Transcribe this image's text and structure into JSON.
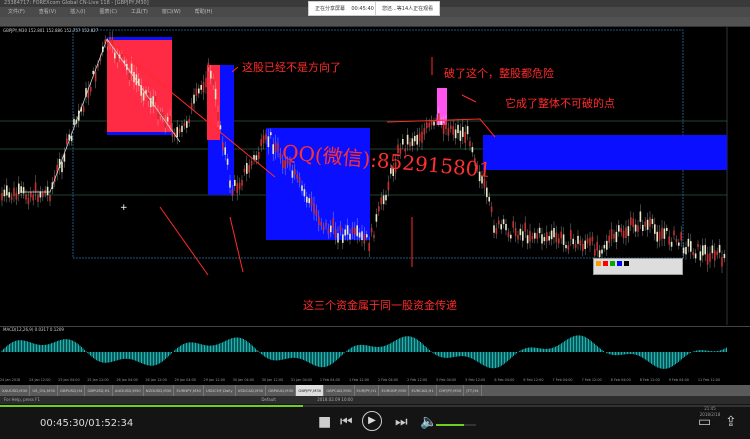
{
  "window": {
    "title": "23384717: FOREXcom Global CN-Live 118 - [GBPJPY,M30]"
  },
  "menu": [
    "文件(F)",
    "查看(V)",
    "插入(I)",
    "图表(C)",
    "工具(T)",
    "窗口(W)",
    "帮助(H)"
  ],
  "chart": {
    "symbol_info": "GBPJPY,M30 152.801 152.886 152.757 152.827",
    "indicator_info": "MACD(12,26,9) 0.0317 0.1209",
    "annotations": {
      "a1": "这股已经不是方向了",
      "a2": "破了这个，整股都危险",
      "a3": "它成了整体不可破的点",
      "a4": "这三个资金属于同一股资金传递",
      "watermark": "QQ(微信):852915801"
    },
    "time_axis": [
      "24 Jan 2018",
      "24 Jan 12:00",
      "25 Jan 04:00",
      "25 Jan 12:00",
      "26 Jan 04:00",
      "26 Jan 12:00",
      "29 Jan 04:00",
      "29 Jan 12:00",
      "30 Jan 04:00",
      "30 Jan 12:00",
      "31 Jan 04:00",
      "1 Feb 04:00",
      "1 Feb 12:00",
      "2 Feb 04:00",
      "2 Feb 12:00",
      "5 Feb 04:00",
      "5 Feb 12:00",
      "6 Feb 04:00",
      "6 Feb 12:00",
      "7 Feb 04:00",
      "7 Feb 12:00",
      "8 Feb 04:00",
      "8 Feb 12:00",
      "9 Feb 04:00",
      "11 Feb 12:00"
    ],
    "colors": {
      "red_zone": "#ff2a44",
      "blue_zone": "#0a10ff",
      "magenta_zone": "#ff55ee",
      "annotation": "#ff2a2a",
      "macd": "#19b5b5"
    }
  },
  "tabs": [
    "XAUUSD,M30",
    "US_OIL,M30",
    "GBPUSD,H4",
    "GBPUSD,H1",
    "AUDUSD,M30",
    "NZDUSD,M30",
    "EURNPY,M30",
    "USDCHF,Daily",
    "USDCAD,M30",
    "GBPAUD,M30",
    "GBPJPY,M30",
    "GBPCAD,M30",
    "EURJPY,H1",
    "EURGBP,M30",
    "EURCAD,H1",
    "CHFJPY,M30",
    "JTT,H4"
  ],
  "active_tab": "GBPJPY,M30",
  "status": {
    "left": "For Help, press F1",
    "profile": "Default",
    "datetime": "2018.02.09 10:00"
  },
  "popups": {
    "sharing": "正在分享屏幕",
    "sharing_time": "00:45:40",
    "viewers": "您还...等14人正在观看"
  },
  "player": {
    "time": "00:45:30/01:52:34",
    "progress_percent": 40.4,
    "volume_percent": 70,
    "clock": "21:45",
    "date": "2018/2/18"
  }
}
